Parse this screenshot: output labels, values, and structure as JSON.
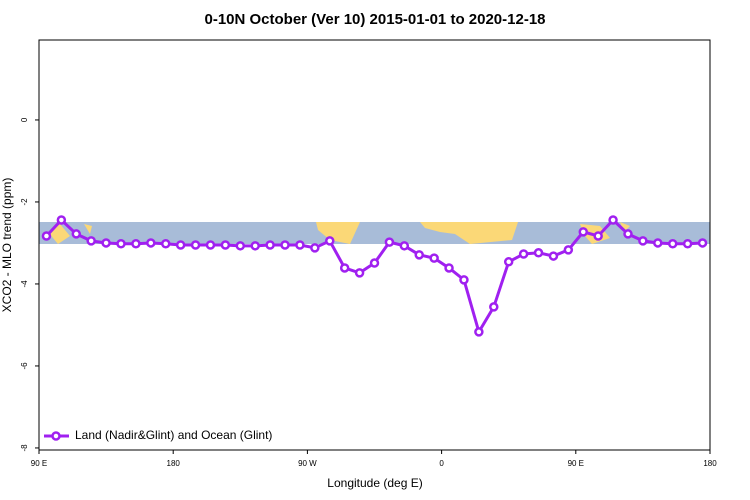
{
  "chart_data": {
    "type": "line",
    "title": "0-10N October (Ver 10)   2015-01-01 to 2020-12-18",
    "xlabel": "Longitude (deg E)",
    "ylabel": "XCO2 - MLO trend (ppm)",
    "xlim": [
      90,
      540
    ],
    "ylim": [
      -8.05,
      1.95
    ],
    "xticks": [
      {
        "value": 90,
        "label": "90 E"
      },
      180,
      {
        "value": 270,
        "label": "90 W"
      },
      {
        "value": 360,
        "label": "0"
      },
      {
        "value": 450,
        "label": "90 E"
      },
      {
        "value": 540,
        "label": "180"
      }
    ],
    "yticks": [
      0,
      -2,
      -4,
      -6,
      -8
    ],
    "legend": "bottom-left",
    "x": [
      95,
      105,
      115,
      125,
      135,
      145,
      155,
      165,
      175,
      185,
      195,
      205,
      215,
      225,
      235,
      245,
      255,
      265,
      275,
      285,
      295,
      305,
      315,
      325,
      335,
      345,
      355,
      365,
      375,
      385,
      395,
      405,
      415,
      425,
      435,
      445,
      455,
      465,
      475,
      485,
      495,
      505,
      515,
      525,
      535
    ],
    "series": [
      {
        "name": "Land (Nadir&Glint) and Ocean (Glint)",
        "color": "#a020f0",
        "values": [
          -2.83,
          -2.44,
          -2.78,
          -2.95,
          -3.0,
          -3.02,
          -3.02,
          -3.0,
          -3.02,
          -3.05,
          -3.05,
          -3.05,
          -3.05,
          -3.07,
          -3.07,
          -3.05,
          -3.05,
          -3.05,
          -3.12,
          -2.95,
          -3.61,
          -3.73,
          -3.49,
          -2.98,
          -3.07,
          -3.29,
          -3.37,
          -3.61,
          -3.9,
          -5.17,
          -4.56,
          -3.46,
          -3.27,
          -3.24,
          -3.32,
          -3.17,
          -2.73,
          -2.83,
          -2.44,
          -2.78,
          -2.95,
          -3.0,
          -3.02,
          -3.02,
          -3.0
        ]
      }
    ]
  }
}
